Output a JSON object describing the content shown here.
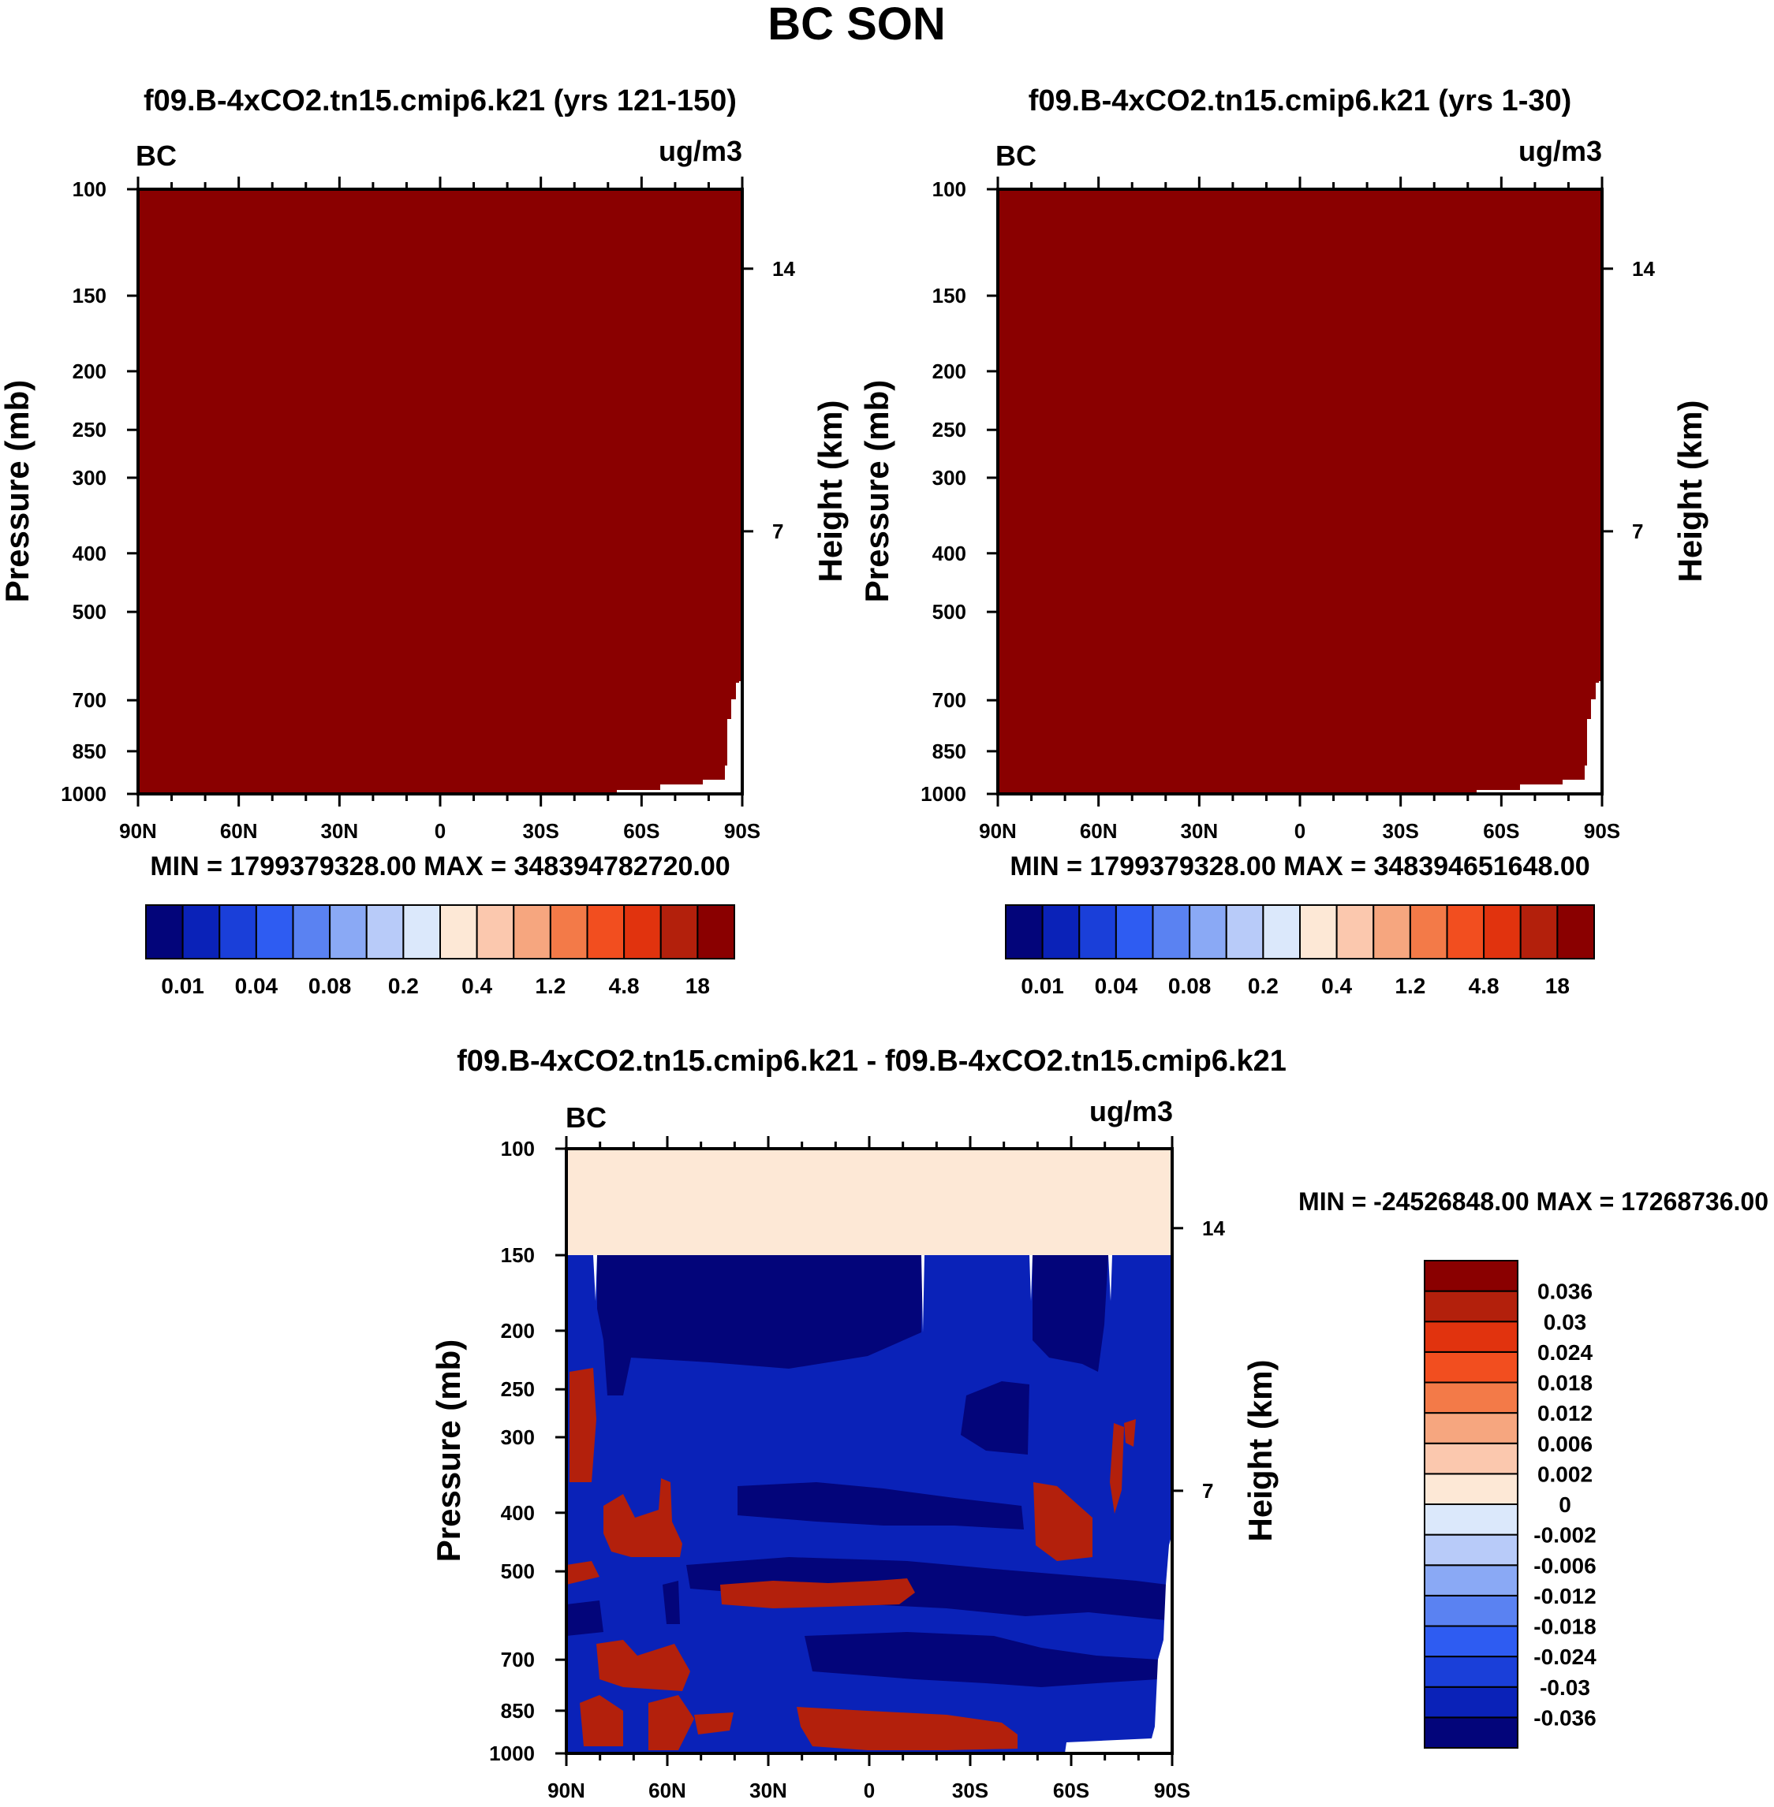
{
  "figure_title": "BC SON",
  "chart_data": [
    {
      "type": "heatmap",
      "title": "f09.B-4xCO2.tn15.cmip6.k21 (yrs 121-150)",
      "left_label": "BC",
      "right_label": "ug/m3",
      "ylabel": "Pressure (mb)",
      "ylabel_right": "Height (km)",
      "x_ticks": [
        "90N",
        "60N",
        "30N",
        "0",
        "30S",
        "60S",
        "90S"
      ],
      "x_tick_values": [
        90,
        60,
        30,
        0,
        -30,
        -60,
        -90
      ],
      "xlim": [
        90,
        -90
      ],
      "y_ticks": [
        100,
        150,
        200,
        250,
        300,
        400,
        500,
        700,
        850,
        1000
      ],
      "ylim": [
        100,
        1000
      ],
      "y_scale": "log",
      "height_ticks": [
        14,
        7
      ],
      "fill": "above 18 (darkest red) everywhere except a small missing-data region near 90S at the surface",
      "stats": "MIN = 1799379328.00   MAX = 348394782720.00",
      "min": 1799379328.0,
      "max": 348394782720.0,
      "colorbar": {
        "orientation": "horizontal",
        "colors": [
          "#03057a",
          "#0a22b8",
          "#1a3fd9",
          "#2e5cf2",
          "#5a82f2",
          "#8aa9f5",
          "#b8cbf9",
          "#dbe8fb",
          "#fde8d6",
          "#fbc8ae",
          "#f6a67f",
          "#f37a48",
          "#f24e1f",
          "#e1330e",
          "#b3200c",
          "#8a0000"
        ],
        "labels": [
          "0.01",
          "0.04",
          "0.08",
          "0.2",
          "0.4",
          "1.2",
          "4.8",
          "18"
        ]
      }
    },
    {
      "type": "heatmap",
      "title": "f09.B-4xCO2.tn15.cmip6.k21 (yrs 1-30)",
      "left_label": "BC",
      "right_label": "ug/m3",
      "ylabel": "Pressure (mb)",
      "ylabel_right": "Height (km)",
      "x_ticks": [
        "90N",
        "60N",
        "30N",
        "0",
        "30S",
        "60S",
        "90S"
      ],
      "x_tick_values": [
        90,
        60,
        30,
        0,
        -30,
        -60,
        -90
      ],
      "xlim": [
        90,
        -90
      ],
      "y_ticks": [
        100,
        150,
        200,
        250,
        300,
        400,
        500,
        700,
        850,
        1000
      ],
      "ylim": [
        100,
        1000
      ],
      "y_scale": "log",
      "height_ticks": [
        14,
        7
      ],
      "fill": "above 18 (darkest red) everywhere except a small missing-data region near 90S at the surface",
      "stats": "MIN = 1799379328.00   MAX = 348394651648.00",
      "min": 1799379328.0,
      "max": 348394651648.0,
      "colorbar": {
        "orientation": "horizontal",
        "colors": [
          "#03057a",
          "#0a22b8",
          "#1a3fd9",
          "#2e5cf2",
          "#5a82f2",
          "#8aa9f5",
          "#b8cbf9",
          "#dbe8fb",
          "#fde8d6",
          "#fbc8ae",
          "#f6a67f",
          "#f37a48",
          "#f24e1f",
          "#e1330e",
          "#b3200c",
          "#8a0000"
        ],
        "labels": [
          "0.01",
          "0.04",
          "0.08",
          "0.2",
          "0.4",
          "1.2",
          "4.8",
          "18"
        ]
      }
    },
    {
      "type": "heatmap",
      "title": "f09.B-4xCO2.tn15.cmip6.k21 - f09.B-4xCO2.tn15.cmip6.k21",
      "left_label": "BC",
      "right_label": "ug/m3",
      "ylabel": "Pressure (mb)",
      "ylabel_right": "Height (km)",
      "x_ticks": [
        "90N",
        "60N",
        "30N",
        "0",
        "30S",
        "60S",
        "90S"
      ],
      "x_tick_values": [
        90,
        60,
        30,
        0,
        -30,
        -60,
        -90
      ],
      "xlim": [
        90,
        -90
      ],
      "y_ticks": [
        100,
        150,
        200,
        250,
        300,
        400,
        500,
        700,
        850,
        1000
      ],
      "ylim": [
        100,
        1000
      ],
      "y_scale": "log",
      "height_ticks": [
        14,
        7
      ],
      "fill": "0 to 0.002 between 100 and 150 mb; mostly -0.03 to below -0.036 below 150 mb with bands above 0.036",
      "stats": "MIN = -24526848.00   MAX = 17268736.00",
      "min": -24526848.0,
      "max": 17268736.0,
      "colorbar": {
        "orientation": "vertical",
        "colors": [
          "#03057a",
          "#0a22b8",
          "#1a3fd9",
          "#2e5cf2",
          "#5a82f2",
          "#8aa9f5",
          "#b8cbf9",
          "#dbe8fb",
          "#fde8d6",
          "#fbc8ae",
          "#f6a67f",
          "#f37a48",
          "#f24e1f",
          "#e1330e",
          "#b3200c",
          "#8a0000"
        ],
        "labels": [
          "-0.036",
          "-0.03",
          "-0.024",
          "-0.018",
          "-0.012",
          "-0.006",
          "-0.002",
          "0",
          "0.002",
          "0.006",
          "0.012",
          "0.018",
          "0.024",
          "0.03",
          "0.036"
        ]
      }
    }
  ]
}
